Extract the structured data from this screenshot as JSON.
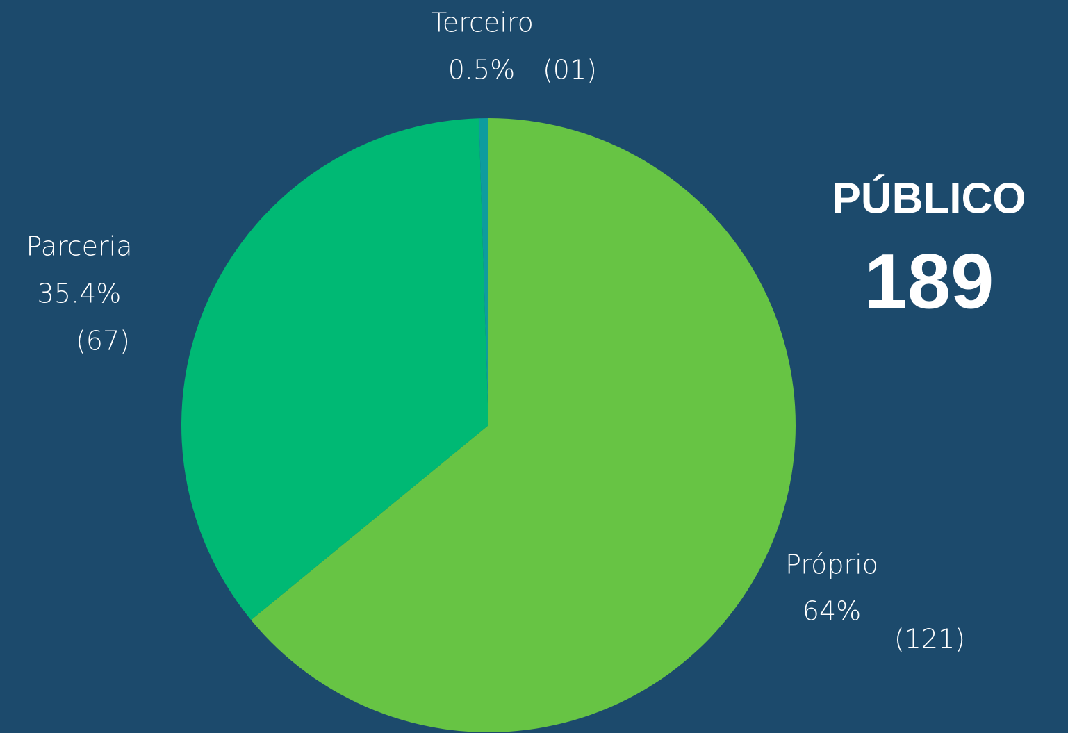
{
  "chart_data": {
    "type": "pie",
    "categories": [
      "Próprio",
      "Parceria",
      "Terceiro"
    ],
    "values": [
      64,
      35.4,
      0.5
    ],
    "value_labels": [
      "64%",
      "35.4%",
      "0.5%"
    ],
    "count_labels": [
      "(121)",
      "(67)",
      "(01)"
    ],
    "colors": [
      "#67c444",
      "#00b974",
      "#0e9c9e"
    ],
    "total": {
      "label": "PÚBLICO",
      "value": 189
    }
  }
}
